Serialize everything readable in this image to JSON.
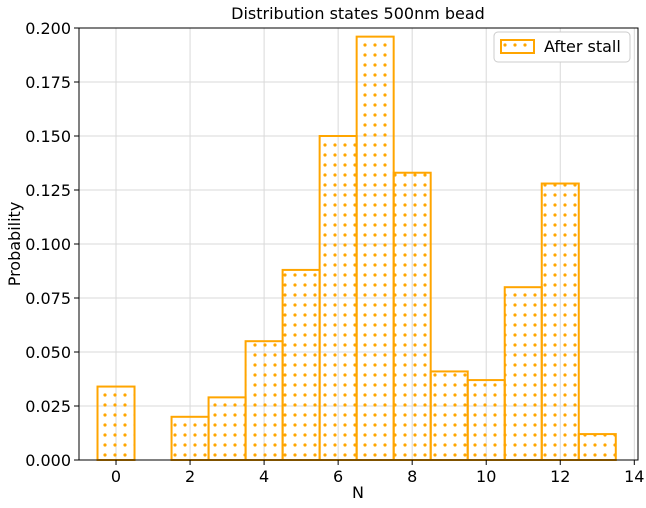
{
  "chart_data": {
    "type": "bar",
    "title": "Distribution states 500nm bead",
    "xlabel": "N",
    "ylabel": "Probability",
    "xlim": [
      -1,
      14.1
    ],
    "ylim": [
      0,
      0.2
    ],
    "xticks": [
      0,
      2,
      4,
      6,
      8,
      10,
      12,
      14
    ],
    "yticks": [
      0.0,
      0.025,
      0.05,
      0.075,
      0.1,
      0.125,
      0.15,
      0.175,
      0.2
    ],
    "ytick_labels": [
      "0.000",
      "0.025",
      "0.050",
      "0.075",
      "0.100",
      "0.125",
      "0.150",
      "0.175",
      "0.200"
    ],
    "grid": true,
    "legend_position": "top-right",
    "series": [
      {
        "name": "After stall",
        "color": "#FFA500",
        "hatch": "dots",
        "x": [
          0,
          1,
          2,
          3,
          4,
          5,
          6,
          7,
          8,
          9,
          10,
          11,
          12,
          13
        ],
        "values": [
          0.034,
          0.0,
          0.02,
          0.029,
          0.055,
          0.088,
          0.15,
          0.196,
          0.133,
          0.041,
          0.037,
          0.08,
          0.128,
          0.012
        ]
      }
    ]
  }
}
